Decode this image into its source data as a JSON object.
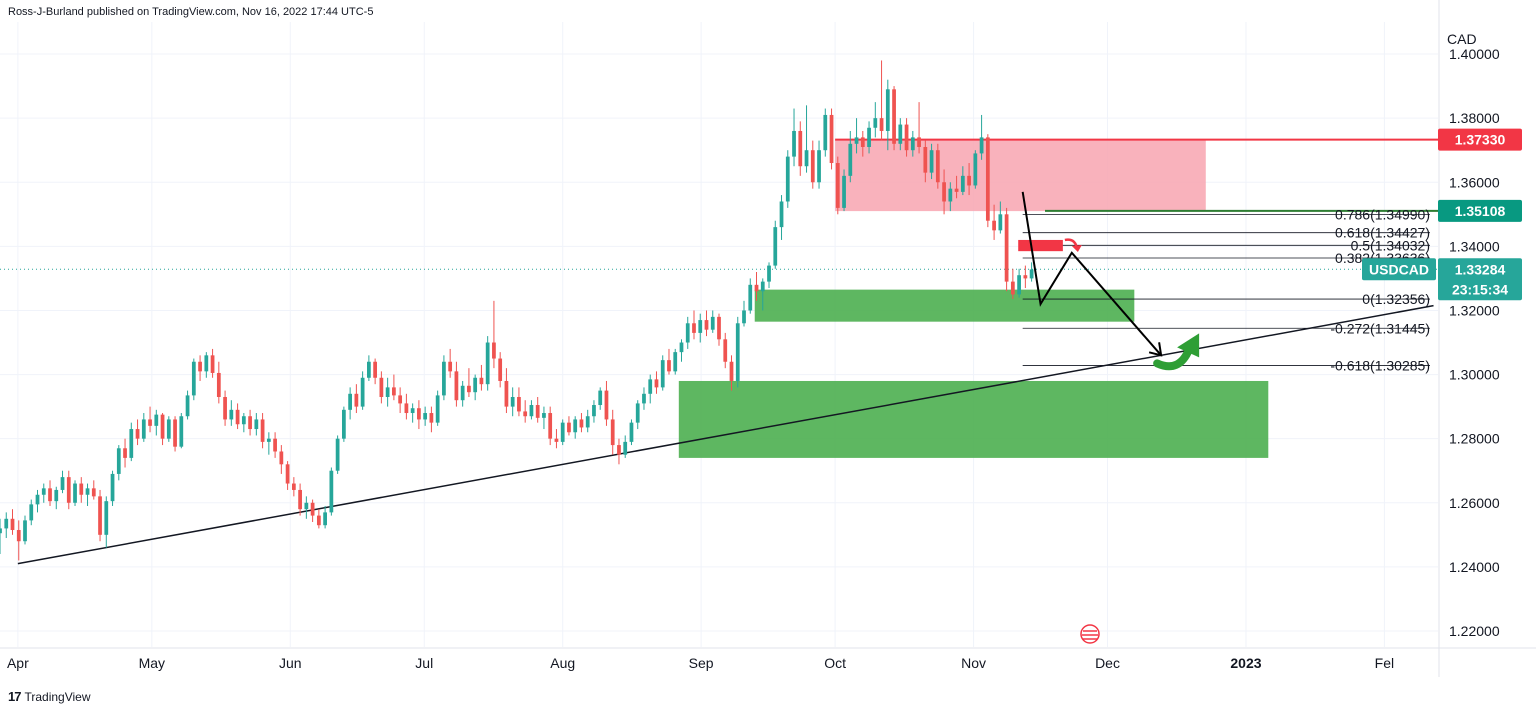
{
  "header": {
    "attribution": "Ross-J-Burland published on TradingView.com, Nov 16, 2022 17:44 UTC-5"
  },
  "footer": {
    "brand": "TradingView",
    "logo_text": "17"
  },
  "chart_data": {
    "type": "candlestick",
    "symbol": "USDCAD",
    "currency": "CAD",
    "ylim": [
      1.215,
      1.41
    ],
    "y_ticks": [
      "1.40000",
      "1.38000",
      "1.36000",
      "1.34000",
      "1.32000",
      "1.30000",
      "1.28000",
      "1.26000",
      "1.24000",
      "1.22000"
    ],
    "y_tick_values": [
      1.4,
      1.38,
      1.36,
      1.34,
      1.32,
      1.3,
      1.28,
      1.26,
      1.24,
      1.22
    ],
    "x_labels": [
      "Apr",
      "May",
      "Jun",
      "Jul",
      "Aug",
      "Sep",
      "Oct",
      "Nov",
      "Dec",
      "2023",
      "Fel"
    ],
    "x_label_days": [
      0,
      30,
      61,
      91,
      122,
      153,
      183,
      214,
      244,
      275,
      306
    ],
    "first_day": -4,
    "last_visible_day": 318,
    "candles": [
      {
        "o": 1.252,
        "h": 1.259,
        "l": 1.248,
        "c": 1.2545
      },
      {
        "o": 1.2545,
        "h": 1.256,
        "l": 1.249,
        "c": 1.251
      },
      {
        "o": 1.251,
        "h": 1.255,
        "l": 1.247,
        "c": 1.253
      },
      {
        "o": 1.253,
        "h": 1.256,
        "l": 1.25,
        "c": 1.2505
      },
      {
        "o": 1.2505,
        "h": 1.255,
        "l": 1.244,
        "c": 1.252
      },
      {
        "o": 1.252,
        "h": 1.257,
        "l": 1.249,
        "c": 1.255
      },
      {
        "o": 1.255,
        "h": 1.258,
        "l": 1.25,
        "c": 1.2515
      },
      {
        "o": 1.2515,
        "h": 1.2545,
        "l": 1.242,
        "c": 1.248
      },
      {
        "o": 1.248,
        "h": 1.256,
        "l": 1.247,
        "c": 1.2545
      },
      {
        "o": 1.2545,
        "h": 1.261,
        "l": 1.253,
        "c": 1.2595
      },
      {
        "o": 1.2595,
        "h": 1.264,
        "l": 1.257,
        "c": 1.2625
      },
      {
        "o": 1.2625,
        "h": 1.266,
        "l": 1.26,
        "c": 1.2645
      },
      {
        "o": 1.2645,
        "h": 1.267,
        "l": 1.259,
        "c": 1.2605
      },
      {
        "o": 1.2605,
        "h": 1.265,
        "l": 1.258,
        "c": 1.264
      },
      {
        "o": 1.264,
        "h": 1.27,
        "l": 1.263,
        "c": 1.268
      },
      {
        "o": 1.268,
        "h": 1.27,
        "l": 1.258,
        "c": 1.26
      },
      {
        "o": 1.26,
        "h": 1.267,
        "l": 1.259,
        "c": 1.266
      },
      {
        "o": 1.266,
        "h": 1.268,
        "l": 1.26,
        "c": 1.2625
      },
      {
        "o": 1.2625,
        "h": 1.266,
        "l": 1.259,
        "c": 1.2645
      },
      {
        "o": 1.2645,
        "h": 1.267,
        "l": 1.261,
        "c": 1.262
      },
      {
        "o": 1.262,
        "h": 1.264,
        "l": 1.248,
        "c": 1.25
      },
      {
        "o": 1.25,
        "h": 1.262,
        "l": 1.246,
        "c": 1.2605
      },
      {
        "o": 1.2605,
        "h": 1.27,
        "l": 1.259,
        "c": 1.269
      },
      {
        "o": 1.269,
        "h": 1.278,
        "l": 1.267,
        "c": 1.277
      },
      {
        "o": 1.277,
        "h": 1.28,
        "l": 1.271,
        "c": 1.274
      },
      {
        "o": 1.274,
        "h": 1.285,
        "l": 1.273,
        "c": 1.283
      },
      {
        "o": 1.283,
        "h": 1.286,
        "l": 1.278,
        "c": 1.28
      },
      {
        "o": 1.28,
        "h": 1.288,
        "l": 1.279,
        "c": 1.286
      },
      {
        "o": 1.286,
        "h": 1.29,
        "l": 1.282,
        "c": 1.284
      },
      {
        "o": 1.284,
        "h": 1.289,
        "l": 1.281,
        "c": 1.2875
      },
      {
        "o": 1.2875,
        "h": 1.288,
        "l": 1.278,
        "c": 1.28
      },
      {
        "o": 1.28,
        "h": 1.287,
        "l": 1.279,
        "c": 1.286
      },
      {
        "o": 1.286,
        "h": 1.287,
        "l": 1.276,
        "c": 1.2775
      },
      {
        "o": 1.2775,
        "h": 1.288,
        "l": 1.277,
        "c": 1.287
      },
      {
        "o": 1.287,
        "h": 1.295,
        "l": 1.286,
        "c": 1.2935
      },
      {
        "o": 1.2935,
        "h": 1.305,
        "l": 1.292,
        "c": 1.304
      },
      {
        "o": 1.304,
        "h": 1.306,
        "l": 1.298,
        "c": 1.301
      },
      {
        "o": 1.301,
        "h": 1.307,
        "l": 1.299,
        "c": 1.306
      },
      {
        "o": 1.306,
        "h": 1.308,
        "l": 1.299,
        "c": 1.3005
      },
      {
        "o": 1.3005,
        "h": 1.304,
        "l": 1.291,
        "c": 1.293
      },
      {
        "o": 1.293,
        "h": 1.295,
        "l": 1.284,
        "c": 1.286
      },
      {
        "o": 1.286,
        "h": 1.292,
        "l": 1.284,
        "c": 1.289
      },
      {
        "o": 1.289,
        "h": 1.291,
        "l": 1.283,
        "c": 1.2845
      },
      {
        "o": 1.2845,
        "h": 1.288,
        "l": 1.282,
        "c": 1.287
      },
      {
        "o": 1.287,
        "h": 1.289,
        "l": 1.281,
        "c": 1.283
      },
      {
        "o": 1.283,
        "h": 1.288,
        "l": 1.281,
        "c": 1.286
      },
      {
        "o": 1.286,
        "h": 1.288,
        "l": 1.277,
        "c": 1.279
      },
      {
        "o": 1.279,
        "h": 1.282,
        "l": 1.275,
        "c": 1.28
      },
      {
        "o": 1.28,
        "h": 1.282,
        "l": 1.274,
        "c": 1.276
      },
      {
        "o": 1.276,
        "h": 1.278,
        "l": 1.269,
        "c": 1.272
      },
      {
        "o": 1.272,
        "h": 1.273,
        "l": 1.264,
        "c": 1.266
      },
      {
        "o": 1.266,
        "h": 1.268,
        "l": 1.262,
        "c": 1.264
      },
      {
        "o": 1.264,
        "h": 1.266,
        "l": 1.256,
        "c": 1.258
      },
      {
        "o": 1.258,
        "h": 1.262,
        "l": 1.255,
        "c": 1.26
      },
      {
        "o": 1.26,
        "h": 1.261,
        "l": 1.254,
        "c": 1.256
      },
      {
        "o": 1.256,
        "h": 1.258,
        "l": 1.252,
        "c": 1.253
      },
      {
        "o": 1.253,
        "h": 1.259,
        "l": 1.252,
        "c": 1.257
      },
      {
        "o": 1.257,
        "h": 1.271,
        "l": 1.256,
        "c": 1.27
      },
      {
        "o": 1.27,
        "h": 1.281,
        "l": 1.269,
        "c": 1.28
      },
      {
        "o": 1.28,
        "h": 1.29,
        "l": 1.279,
        "c": 1.289
      },
      {
        "o": 1.289,
        "h": 1.296,
        "l": 1.286,
        "c": 1.294
      },
      {
        "o": 1.294,
        "h": 1.297,
        "l": 1.288,
        "c": 1.29
      },
      {
        "o": 1.29,
        "h": 1.301,
        "l": 1.289,
        "c": 1.299
      },
      {
        "o": 1.299,
        "h": 1.306,
        "l": 1.298,
        "c": 1.304
      },
      {
        "o": 1.304,
        "h": 1.305,
        "l": 1.297,
        "c": 1.299
      },
      {
        "o": 1.299,
        "h": 1.301,
        "l": 1.291,
        "c": 1.293
      },
      {
        "o": 1.293,
        "h": 1.299,
        "l": 1.29,
        "c": 1.296
      },
      {
        "o": 1.296,
        "h": 1.3,
        "l": 1.292,
        "c": 1.2935
      },
      {
        "o": 1.2935,
        "h": 1.296,
        "l": 1.288,
        "c": 1.291
      },
      {
        "o": 1.291,
        "h": 1.294,
        "l": 1.286,
        "c": 1.288
      },
      {
        "o": 1.288,
        "h": 1.291,
        "l": 1.285,
        "c": 1.2895
      },
      {
        "o": 1.2895,
        "h": 1.292,
        "l": 1.283,
        "c": 1.286
      },
      {
        "o": 1.286,
        "h": 1.29,
        "l": 1.284,
        "c": 1.288
      },
      {
        "o": 1.288,
        "h": 1.29,
        "l": 1.282,
        "c": 1.285
      },
      {
        "o": 1.285,
        "h": 1.295,
        "l": 1.284,
        "c": 1.2935
      },
      {
        "o": 1.2935,
        "h": 1.306,
        "l": 1.292,
        "c": 1.304
      },
      {
        "o": 1.304,
        "h": 1.308,
        "l": 1.299,
        "c": 1.301
      },
      {
        "o": 1.301,
        "h": 1.304,
        "l": 1.29,
        "c": 1.292
      },
      {
        "o": 1.292,
        "h": 1.298,
        "l": 1.29,
        "c": 1.2965
      },
      {
        "o": 1.2965,
        "h": 1.302,
        "l": 1.293,
        "c": 1.2945
      },
      {
        "o": 1.2945,
        "h": 1.3,
        "l": 1.292,
        "c": 1.299
      },
      {
        "o": 1.299,
        "h": 1.303,
        "l": 1.295,
        "c": 1.297
      },
      {
        "o": 1.297,
        "h": 1.312,
        "l": 1.295,
        "c": 1.31
      },
      {
        "o": 1.31,
        "h": 1.323,
        "l": 1.302,
        "c": 1.305
      },
      {
        "o": 1.305,
        "h": 1.307,
        "l": 1.296,
        "c": 1.298
      },
      {
        "o": 1.298,
        "h": 1.302,
        "l": 1.288,
        "c": 1.29
      },
      {
        "o": 1.29,
        "h": 1.296,
        "l": 1.287,
        "c": 1.293
      },
      {
        "o": 1.293,
        "h": 1.296,
        "l": 1.287,
        "c": 1.2885
      },
      {
        "o": 1.2885,
        "h": 1.292,
        "l": 1.285,
        "c": 1.287
      },
      {
        "o": 1.287,
        "h": 1.292,
        "l": 1.286,
        "c": 1.2905
      },
      {
        "o": 1.2905,
        "h": 1.293,
        "l": 1.285,
        "c": 1.2865
      },
      {
        "o": 1.2865,
        "h": 1.29,
        "l": 1.283,
        "c": 1.288
      },
      {
        "o": 1.288,
        "h": 1.29,
        "l": 1.278,
        "c": 1.28
      },
      {
        "o": 1.28,
        "h": 1.283,
        "l": 1.277,
        "c": 1.279
      },
      {
        "o": 1.279,
        "h": 1.286,
        "l": 1.278,
        "c": 1.285
      },
      {
        "o": 1.285,
        "h": 1.287,
        "l": 1.281,
        "c": 1.282
      },
      {
        "o": 1.282,
        "h": 1.287,
        "l": 1.28,
        "c": 1.286
      },
      {
        "o": 1.286,
        "h": 1.288,
        "l": 1.282,
        "c": 1.2835
      },
      {
        "o": 1.2835,
        "h": 1.289,
        "l": 1.282,
        "c": 1.287
      },
      {
        "o": 1.287,
        "h": 1.292,
        "l": 1.285,
        "c": 1.2905
      },
      {
        "o": 1.2905,
        "h": 1.296,
        "l": 1.289,
        "c": 1.295
      },
      {
        "o": 1.295,
        "h": 1.298,
        "l": 1.284,
        "c": 1.286
      },
      {
        "o": 1.286,
        "h": 1.289,
        "l": 1.275,
        "c": 1.278
      },
      {
        "o": 1.278,
        "h": 1.28,
        "l": 1.272,
        "c": 1.275
      },
      {
        "o": 1.275,
        "h": 1.281,
        "l": 1.274,
        "c": 1.279
      },
      {
        "o": 1.279,
        "h": 1.286,
        "l": 1.278,
        "c": 1.285
      },
      {
        "o": 1.285,
        "h": 1.292,
        "l": 1.283,
        "c": 1.291
      },
      {
        "o": 1.291,
        "h": 1.296,
        "l": 1.289,
        "c": 1.294
      },
      {
        "o": 1.294,
        "h": 1.3,
        "l": 1.291,
        "c": 1.2985
      },
      {
        "o": 1.2985,
        "h": 1.301,
        "l": 1.294,
        "c": 1.296
      },
      {
        "o": 1.296,
        "h": 1.306,
        "l": 1.295,
        "c": 1.3045
      },
      {
        "o": 1.3045,
        "h": 1.308,
        "l": 1.3,
        "c": 1.301
      },
      {
        "o": 1.301,
        "h": 1.308,
        "l": 1.3,
        "c": 1.307
      },
      {
        "o": 1.307,
        "h": 1.311,
        "l": 1.304,
        "c": 1.31
      },
      {
        "o": 1.31,
        "h": 1.318,
        "l": 1.308,
        "c": 1.316
      },
      {
        "o": 1.316,
        "h": 1.32,
        "l": 1.311,
        "c": 1.313
      },
      {
        "o": 1.313,
        "h": 1.319,
        "l": 1.31,
        "c": 1.317
      },
      {
        "o": 1.317,
        "h": 1.32,
        "l": 1.312,
        "c": 1.314
      },
      {
        "o": 1.314,
        "h": 1.32,
        "l": 1.313,
        "c": 1.318
      },
      {
        "o": 1.318,
        "h": 1.319,
        "l": 1.309,
        "c": 1.311
      },
      {
        "o": 1.311,
        "h": 1.313,
        "l": 1.302,
        "c": 1.304
      },
      {
        "o": 1.304,
        "h": 1.306,
        "l": 1.295,
        "c": 1.298
      },
      {
        "o": 1.298,
        "h": 1.318,
        "l": 1.296,
        "c": 1.316
      },
      {
        "o": 1.316,
        "h": 1.323,
        "l": 1.315,
        "c": 1.32
      },
      {
        "o": 1.32,
        "h": 1.33,
        "l": 1.319,
        "c": 1.328
      },
      {
        "o": 1.328,
        "h": 1.332,
        "l": 1.323,
        "c": 1.326
      },
      {
        "o": 1.326,
        "h": 1.33,
        "l": 1.32,
        "c": 1.329
      },
      {
        "o": 1.329,
        "h": 1.335,
        "l": 1.327,
        "c": 1.334
      },
      {
        "o": 1.334,
        "h": 1.348,
        "l": 1.333,
        "c": 1.346
      },
      {
        "o": 1.346,
        "h": 1.356,
        "l": 1.342,
        "c": 1.354
      },
      {
        "o": 1.354,
        "h": 1.37,
        "l": 1.352,
        "c": 1.368
      },
      {
        "o": 1.368,
        "h": 1.383,
        "l": 1.365,
        "c": 1.376
      },
      {
        "o": 1.376,
        "h": 1.379,
        "l": 1.362,
        "c": 1.365
      },
      {
        "o": 1.365,
        "h": 1.384,
        "l": 1.363,
        "c": 1.37
      },
      {
        "o": 1.37,
        "h": 1.373,
        "l": 1.358,
        "c": 1.36
      },
      {
        "o": 1.36,
        "h": 1.373,
        "l": 1.358,
        "c": 1.37
      },
      {
        "o": 1.37,
        "h": 1.383,
        "l": 1.368,
        "c": 1.381
      },
      {
        "o": 1.381,
        "h": 1.383,
        "l": 1.364,
        "c": 1.366
      },
      {
        "o": 1.366,
        "h": 1.368,
        "l": 1.35,
        "c": 1.352
      },
      {
        "o": 1.352,
        "h": 1.364,
        "l": 1.351,
        "c": 1.362
      },
      {
        "o": 1.362,
        "h": 1.376,
        "l": 1.36,
        "c": 1.372
      },
      {
        "o": 1.372,
        "h": 1.38,
        "l": 1.369,
        "c": 1.374
      },
      {
        "o": 1.374,
        "h": 1.376,
        "l": 1.368,
        "c": 1.371
      },
      {
        "o": 1.371,
        "h": 1.379,
        "l": 1.369,
        "c": 1.377
      },
      {
        "o": 1.377,
        "h": 1.385,
        "l": 1.374,
        "c": 1.38
      },
      {
        "o": 1.38,
        "h": 1.398,
        "l": 1.373,
        "c": 1.376
      },
      {
        "o": 1.376,
        "h": 1.392,
        "l": 1.37,
        "c": 1.389
      },
      {
        "o": 1.389,
        "h": 1.39,
        "l": 1.37,
        "c": 1.372
      },
      {
        "o": 1.372,
        "h": 1.38,
        "l": 1.37,
        "c": 1.378
      },
      {
        "o": 1.378,
        "h": 1.38,
        "l": 1.368,
        "c": 1.37
      },
      {
        "o": 1.37,
        "h": 1.376,
        "l": 1.368,
        "c": 1.374
      },
      {
        "o": 1.374,
        "h": 1.385,
        "l": 1.369,
        "c": 1.371
      },
      {
        "o": 1.371,
        "h": 1.373,
        "l": 1.36,
        "c": 1.363
      },
      {
        "o": 1.363,
        "h": 1.372,
        "l": 1.361,
        "c": 1.37
      },
      {
        "o": 1.37,
        "h": 1.372,
        "l": 1.358,
        "c": 1.36
      },
      {
        "o": 1.36,
        "h": 1.364,
        "l": 1.35,
        "c": 1.354
      },
      {
        "o": 1.354,
        "h": 1.36,
        "l": 1.351,
        "c": 1.358
      },
      {
        "o": 1.358,
        "h": 1.362,
        "l": 1.355,
        "c": 1.357
      },
      {
        "o": 1.357,
        "h": 1.365,
        "l": 1.356,
        "c": 1.362
      },
      {
        "o": 1.362,
        "h": 1.366,
        "l": 1.356,
        "c": 1.359
      },
      {
        "o": 1.359,
        "h": 1.37,
        "l": 1.358,
        "c": 1.369
      },
      {
        "o": 1.369,
        "h": 1.381,
        "l": 1.367,
        "c": 1.374
      },
      {
        "o": 1.374,
        "h": 1.375,
        "l": 1.346,
        "c": 1.348
      },
      {
        "o": 1.348,
        "h": 1.353,
        "l": 1.342,
        "c": 1.345
      },
      {
        "o": 1.345,
        "h": 1.354,
        "l": 1.344,
        "c": 1.35
      },
      {
        "o": 1.35,
        "h": 1.352,
        "l": 1.326,
        "c": 1.329
      },
      {
        "o": 1.329,
        "h": 1.333,
        "l": 1.3236,
        "c": 1.325
      },
      {
        "o": 1.325,
        "h": 1.333,
        "l": 1.324,
        "c": 1.331
      },
      {
        "o": 1.331,
        "h": 1.334,
        "l": 1.327,
        "c": 1.33
      },
      {
        "o": 1.33,
        "h": 1.335,
        "l": 1.329,
        "c": 1.3328
      }
    ],
    "zones": [
      {
        "name": "supply-zone",
        "color": "#f8a5b0",
        "y0": 1.351,
        "y1": 1.3733,
        "d0": 183,
        "d1": 266
      },
      {
        "name": "demand-zone-upper",
        "color": "#4caf50",
        "y0": 1.3165,
        "y1": 1.3265,
        "d0": 165,
        "d1": 250
      },
      {
        "name": "demand-zone-lower",
        "color": "#4caf50",
        "y0": 1.274,
        "y1": 1.298,
        "d0": 148,
        "d1": 280
      }
    ],
    "resistance_level": {
      "value": 1.3733,
      "color": "#f23645"
    },
    "support_level": {
      "value": 1.35108,
      "color": "#089981"
    },
    "current_price": {
      "value": 1.33284
    },
    "trendline": {
      "d0": 0,
      "y0": 1.241,
      "d1": 317,
      "y1": 1.3215
    },
    "fib_levels": [
      {
        "label": "0.786(1.34990)",
        "value": 1.3499
      },
      {
        "label": "0.618(1.34427)",
        "value": 1.34427
      },
      {
        "label": "0.5(1.34032)",
        "value": 1.34032
      },
      {
        "label": "0.382(1.33636)",
        "value": 1.33636
      },
      {
        "label": "0(1.32356)",
        "value": 1.32356
      },
      {
        "label": "-0.272(1.31445)",
        "value": 1.31445
      },
      {
        "label": "-0.618(1.30285)",
        "value": 1.30285
      }
    ],
    "projection_path": [
      [
        225,
        1.357
      ],
      [
        229,
        1.322
      ],
      [
        236,
        1.338
      ],
      [
        256,
        1.306
      ]
    ],
    "red_box": {
      "d0": 224,
      "d1": 234,
      "y0": 1.3385,
      "y1": 1.342
    },
    "tags": {
      "resistance": "1.37330",
      "support": "1.35108",
      "symbol": "USDCAD",
      "price": "1.33284",
      "countdown": "23:15:34"
    },
    "colors": {
      "up": "#26a69a",
      "down": "#ef5350",
      "grid": "#f0f3fa",
      "wick_up": "#26a69a",
      "wick_down": "#ef5350"
    }
  }
}
